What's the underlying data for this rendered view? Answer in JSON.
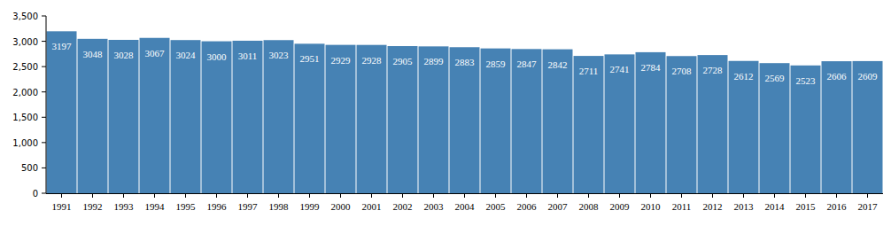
{
  "chart_data": {
    "type": "bar",
    "categories": [
      "1991",
      "1992",
      "1993",
      "1994",
      "1995",
      "1996",
      "1997",
      "1998",
      "1999",
      "2000",
      "2001",
      "2002",
      "2003",
      "2004",
      "2005",
      "2006",
      "2007",
      "2008",
      "2009",
      "2010",
      "2011",
      "2012",
      "2013",
      "2014",
      "2015",
      "2016",
      "2017"
    ],
    "values": [
      3197,
      3048,
      3028,
      3067,
      3024,
      3000,
      3011,
      3023,
      2951,
      2929,
      2928,
      2905,
      2899,
      2883,
      2859,
      2847,
      2842,
      2711,
      2741,
      2784,
      2708,
      2728,
      2612,
      2569,
      2523,
      2606,
      2609
    ],
    "color": "#4682b4",
    "ylim": [
      0,
      3500
    ],
    "yticks": [
      0,
      500,
      {
        "value": 1000,
        "label": "1,000"
      },
      {
        "value": 1500,
        "label": "1,500"
      },
      {
        "value": 2000,
        "label": "2,000"
      },
      {
        "value": 2500,
        "label": "2,500"
      },
      {
        "value": 3000,
        "label": "3,000"
      },
      {
        "value": 3500,
        "label": "3,500"
      }
    ],
    "grid": false,
    "data_labels": true
  }
}
